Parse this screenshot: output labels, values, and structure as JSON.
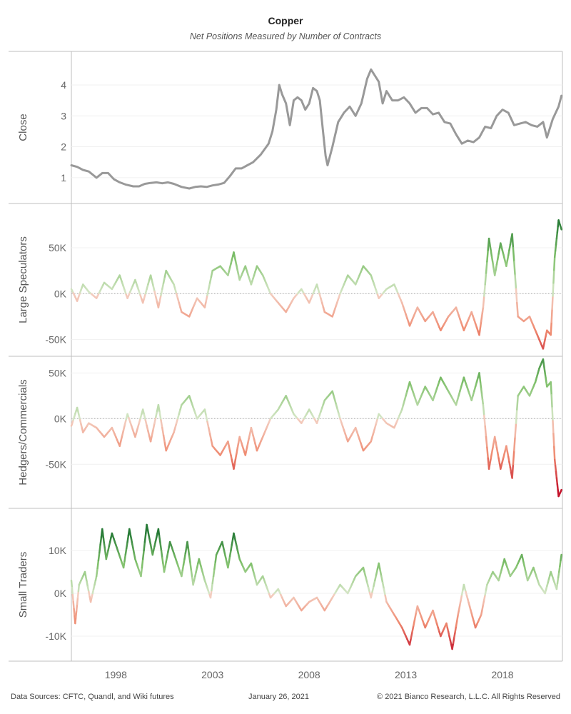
{
  "header": {
    "title": "Copper",
    "subtitle": "Net Positions Measured by Number of Contracts"
  },
  "footer": {
    "sources": "Data Sources: CFTC, Quandl, and Wiki futures",
    "date": "January 26, 2021",
    "copyright": "© 2021 Bianco Research, L.L.C. All Rights Reserved"
  },
  "chart_data": {
    "type": "line",
    "x_range": [
      1995.7,
      2021.1
    ],
    "x_ticks": [
      "1998",
      "2003",
      "2008",
      "2013",
      "2018"
    ],
    "x_tick_values": [
      1998,
      2003,
      2008,
      2013,
      2018
    ],
    "panels": [
      {
        "name": "close",
        "ylabel": "Close",
        "ylim": [
          0.35,
          4.9
        ],
        "y_ticks": [
          "1",
          "2",
          "3",
          "4"
        ],
        "y_tick_values": [
          1,
          2,
          3,
          4
        ],
        "zero_line": false,
        "color_mode": "solid",
        "color": "#999999",
        "x": [
          1995.7,
          1996.0,
          1996.3,
          1996.6,
          1996.8,
          1997.0,
          1997.3,
          1997.6,
          1997.9,
          1998.2,
          1998.5,
          1998.9,
          1999.2,
          1999.5,
          1999.8,
          2000.1,
          2000.4,
          2000.7,
          2001.0,
          2001.4,
          2001.8,
          2002.1,
          2002.4,
          2002.7,
          2003.0,
          2003.3,
          2003.6,
          2003.9,
          2004.2,
          2004.5,
          2004.8,
          2005.1,
          2005.5,
          2005.9,
          2006.1,
          2006.3,
          2006.45,
          2006.6,
          2006.8,
          2007.0,
          2007.2,
          2007.4,
          2007.6,
          2007.8,
          2008.0,
          2008.2,
          2008.4,
          2008.55,
          2008.7,
          2008.85,
          2008.95,
          2009.2,
          2009.5,
          2009.8,
          2010.1,
          2010.4,
          2010.7,
          2011.0,
          2011.2,
          2011.4,
          2011.6,
          2011.8,
          2012.0,
          2012.3,
          2012.6,
          2012.9,
          2013.2,
          2013.5,
          2013.8,
          2014.1,
          2014.4,
          2014.7,
          2015.0,
          2015.3,
          2015.6,
          2015.9,
          2016.2,
          2016.5,
          2016.8,
          2017.1,
          2017.4,
          2017.7,
          2018.0,
          2018.3,
          2018.6,
          2018.9,
          2019.2,
          2019.5,
          2019.8,
          2020.1,
          2020.3,
          2020.6,
          2020.9,
          2021.05
        ],
        "values": [
          1.4,
          1.35,
          1.25,
          1.2,
          1.1,
          1.0,
          1.15,
          1.15,
          0.95,
          0.85,
          0.78,
          0.72,
          0.72,
          0.8,
          0.83,
          0.85,
          0.82,
          0.85,
          0.8,
          0.7,
          0.65,
          0.7,
          0.72,
          0.7,
          0.75,
          0.78,
          0.83,
          1.05,
          1.3,
          1.3,
          1.4,
          1.5,
          1.75,
          2.1,
          2.5,
          3.2,
          4.0,
          3.7,
          3.4,
          2.7,
          3.5,
          3.6,
          3.5,
          3.2,
          3.4,
          3.9,
          3.8,
          3.5,
          2.6,
          1.7,
          1.4,
          2.0,
          2.8,
          3.1,
          3.3,
          3.0,
          3.4,
          4.2,
          4.5,
          4.3,
          4.1,
          3.4,
          3.8,
          3.5,
          3.5,
          3.6,
          3.4,
          3.1,
          3.25,
          3.25,
          3.05,
          3.1,
          2.8,
          2.75,
          2.4,
          2.1,
          2.2,
          2.15,
          2.3,
          2.65,
          2.6,
          3.0,
          3.2,
          3.1,
          2.7,
          2.75,
          2.8,
          2.7,
          2.65,
          2.8,
          2.3,
          2.9,
          3.3,
          3.65
        ]
      },
      {
        "name": "large-speculators",
        "ylabel": "Large Speculators",
        "ylim": [
          -62000,
          92000
        ],
        "y_ticks": [
          "-50K",
          "0K",
          "50K"
        ],
        "y_tick_values": [
          -50000,
          0,
          50000
        ],
        "zero_line": true,
        "color_mode": "diverging",
        "scale": 80000,
        "x": [
          1995.7,
          1996.0,
          1996.3,
          1996.6,
          1997.0,
          1997.4,
          1997.8,
          1998.2,
          1998.6,
          1999.0,
          1999.4,
          1999.8,
          2000.2,
          2000.6,
          2001.0,
          2001.4,
          2001.8,
          2002.2,
          2002.6,
          2003.0,
          2003.4,
          2003.8,
          2004.1,
          2004.4,
          2004.7,
          2005.0,
          2005.3,
          2005.6,
          2006.0,
          2006.4,
          2006.8,
          2007.2,
          2007.6,
          2008.0,
          2008.4,
          2008.8,
          2009.2,
          2009.6,
          2010.0,
          2010.4,
          2010.8,
          2011.2,
          2011.6,
          2012.0,
          2012.4,
          2012.8,
          2013.2,
          2013.6,
          2014.0,
          2014.4,
          2014.8,
          2015.2,
          2015.6,
          2016.0,
          2016.4,
          2016.8,
          2017.0,
          2017.3,
          2017.6,
          2017.9,
          2018.2,
          2018.5,
          2018.8,
          2019.1,
          2019.4,
          2019.7,
          2019.9,
          2020.1,
          2020.3,
          2020.5,
          2020.7,
          2020.9,
          2021.05
        ],
        "values": [
          5000,
          -8000,
          10000,
          2000,
          -5000,
          12000,
          5000,
          20000,
          -5000,
          15000,
          -10000,
          20000,
          -15000,
          25000,
          10000,
          -20000,
          -25000,
          -5000,
          -15000,
          25000,
          30000,
          20000,
          45000,
          15000,
          30000,
          10000,
          30000,
          20000,
          0,
          -10000,
          -20000,
          -5000,
          5000,
          -10000,
          10000,
          -20000,
          -25000,
          0,
          20000,
          10000,
          30000,
          20000,
          -5000,
          5000,
          10000,
          -10000,
          -35000,
          -15000,
          -30000,
          -20000,
          -40000,
          -25000,
          -15000,
          -40000,
          -20000,
          -45000,
          -15000,
          60000,
          20000,
          55000,
          30000,
          65000,
          -25000,
          -30000,
          -25000,
          -40000,
          -50000,
          -60000,
          -40000,
          -45000,
          40000,
          80000,
          70000
        ]
      },
      {
        "name": "hedgers-commercials",
        "ylabel": "Hedgers/Commercials",
        "ylim": [
          -92000,
          62000
        ],
        "y_ticks": [
          "-50K",
          "0K",
          "50K"
        ],
        "y_tick_values": [
          -50000,
          0,
          50000
        ],
        "zero_line": true,
        "color_mode": "diverging",
        "scale": 80000,
        "x": [
          1995.7,
          1996.0,
          1996.3,
          1996.6,
          1997.0,
          1997.4,
          1997.8,
          1998.2,
          1998.6,
          1999.0,
          1999.4,
          1999.8,
          2000.2,
          2000.6,
          2001.0,
          2001.4,
          2001.8,
          2002.2,
          2002.6,
          2003.0,
          2003.4,
          2003.8,
          2004.1,
          2004.4,
          2004.7,
          2005.0,
          2005.3,
          2005.6,
          2006.0,
          2006.4,
          2006.8,
          2007.2,
          2007.6,
          2008.0,
          2008.4,
          2008.8,
          2009.2,
          2009.6,
          2010.0,
          2010.4,
          2010.8,
          2011.2,
          2011.6,
          2012.0,
          2012.4,
          2012.8,
          2013.2,
          2013.6,
          2014.0,
          2014.4,
          2014.8,
          2015.2,
          2015.6,
          2016.0,
          2016.4,
          2016.8,
          2017.0,
          2017.3,
          2017.6,
          2017.9,
          2018.2,
          2018.5,
          2018.8,
          2019.1,
          2019.4,
          2019.7,
          2019.9,
          2020.1,
          2020.3,
          2020.5,
          2020.7,
          2020.9,
          2021.05
        ],
        "values": [
          -8000,
          12000,
          -15000,
          -5000,
          -10000,
          -20000,
          -10000,
          -30000,
          5000,
          -20000,
          10000,
          -25000,
          15000,
          -35000,
          -15000,
          15000,
          25000,
          0,
          10000,
          -30000,
          -40000,
          -25000,
          -55000,
          -20000,
          -40000,
          -10000,
          -35000,
          -20000,
          0,
          10000,
          25000,
          5000,
          -5000,
          10000,
          -5000,
          20000,
          30000,
          0,
          -25000,
          -10000,
          -35000,
          -25000,
          5000,
          -5000,
          -10000,
          10000,
          40000,
          15000,
          35000,
          20000,
          45000,
          30000,
          15000,
          45000,
          20000,
          50000,
          15000,
          -55000,
          -20000,
          -55000,
          -30000,
          -65000,
          25000,
          35000,
          25000,
          40000,
          55000,
          65000,
          35000,
          40000,
          -45000,
          -85000,
          -78000
        ]
      },
      {
        "name": "small-traders",
        "ylabel": "Small Traders",
        "ylim": [
          -14500,
          18500
        ],
        "y_ticks": [
          "-10K",
          "0K",
          "10K"
        ],
        "y_tick_values": [
          -10000,
          0,
          10000
        ],
        "zero_line": false,
        "color_mode": "diverging",
        "scale": 14000,
        "x": [
          1995.7,
          1995.9,
          1996.1,
          1996.4,
          1996.7,
          1997.0,
          1997.3,
          1997.5,
          1997.8,
          1998.1,
          1998.4,
          1998.7,
          1999.0,
          1999.3,
          1999.6,
          1999.9,
          2000.2,
          2000.5,
          2000.8,
          2001.1,
          2001.4,
          2001.7,
          2002.0,
          2002.3,
          2002.6,
          2002.9,
          2003.2,
          2003.5,
          2003.8,
          2004.1,
          2004.4,
          2004.7,
          2005.0,
          2005.3,
          2005.6,
          2006.0,
          2006.4,
          2006.8,
          2007.2,
          2007.6,
          2008.0,
          2008.4,
          2008.8,
          2009.2,
          2009.6,
          2010.0,
          2010.4,
          2010.8,
          2011.2,
          2011.6,
          2012.0,
          2012.4,
          2012.8,
          2013.2,
          2013.6,
          2014.0,
          2014.4,
          2014.8,
          2015.1,
          2015.4,
          2015.7,
          2016.0,
          2016.3,
          2016.6,
          2016.9,
          2017.2,
          2017.5,
          2017.8,
          2018.1,
          2018.4,
          2018.7,
          2019.0,
          2019.3,
          2019.6,
          2019.9,
          2020.2,
          2020.5,
          2020.8,
          2021.05
        ],
        "values": [
          3000,
          -7000,
          2000,
          5000,
          -2000,
          4000,
          15000,
          8000,
          14000,
          10000,
          6000,
          15000,
          8000,
          4000,
          16000,
          9000,
          15000,
          5000,
          12000,
          8000,
          4000,
          12000,
          2000,
          8000,
          3000,
          -1000,
          9000,
          12000,
          6000,
          14000,
          8000,
          5000,
          7000,
          2000,
          4000,
          -1000,
          1000,
          -3000,
          -1000,
          -4000,
          -2000,
          -1000,
          -4000,
          -1000,
          2000,
          0,
          4000,
          6000,
          -1000,
          7000,
          -2000,
          -5000,
          -8000,
          -12000,
          -3000,
          -8000,
          -4000,
          -10000,
          -7000,
          -13000,
          -5000,
          2000,
          -3000,
          -8000,
          -5000,
          2000,
          5000,
          3000,
          8000,
          4000,
          6000,
          9000,
          3000,
          6000,
          2000,
          0,
          5000,
          1000,
          9000
        ]
      }
    ]
  }
}
